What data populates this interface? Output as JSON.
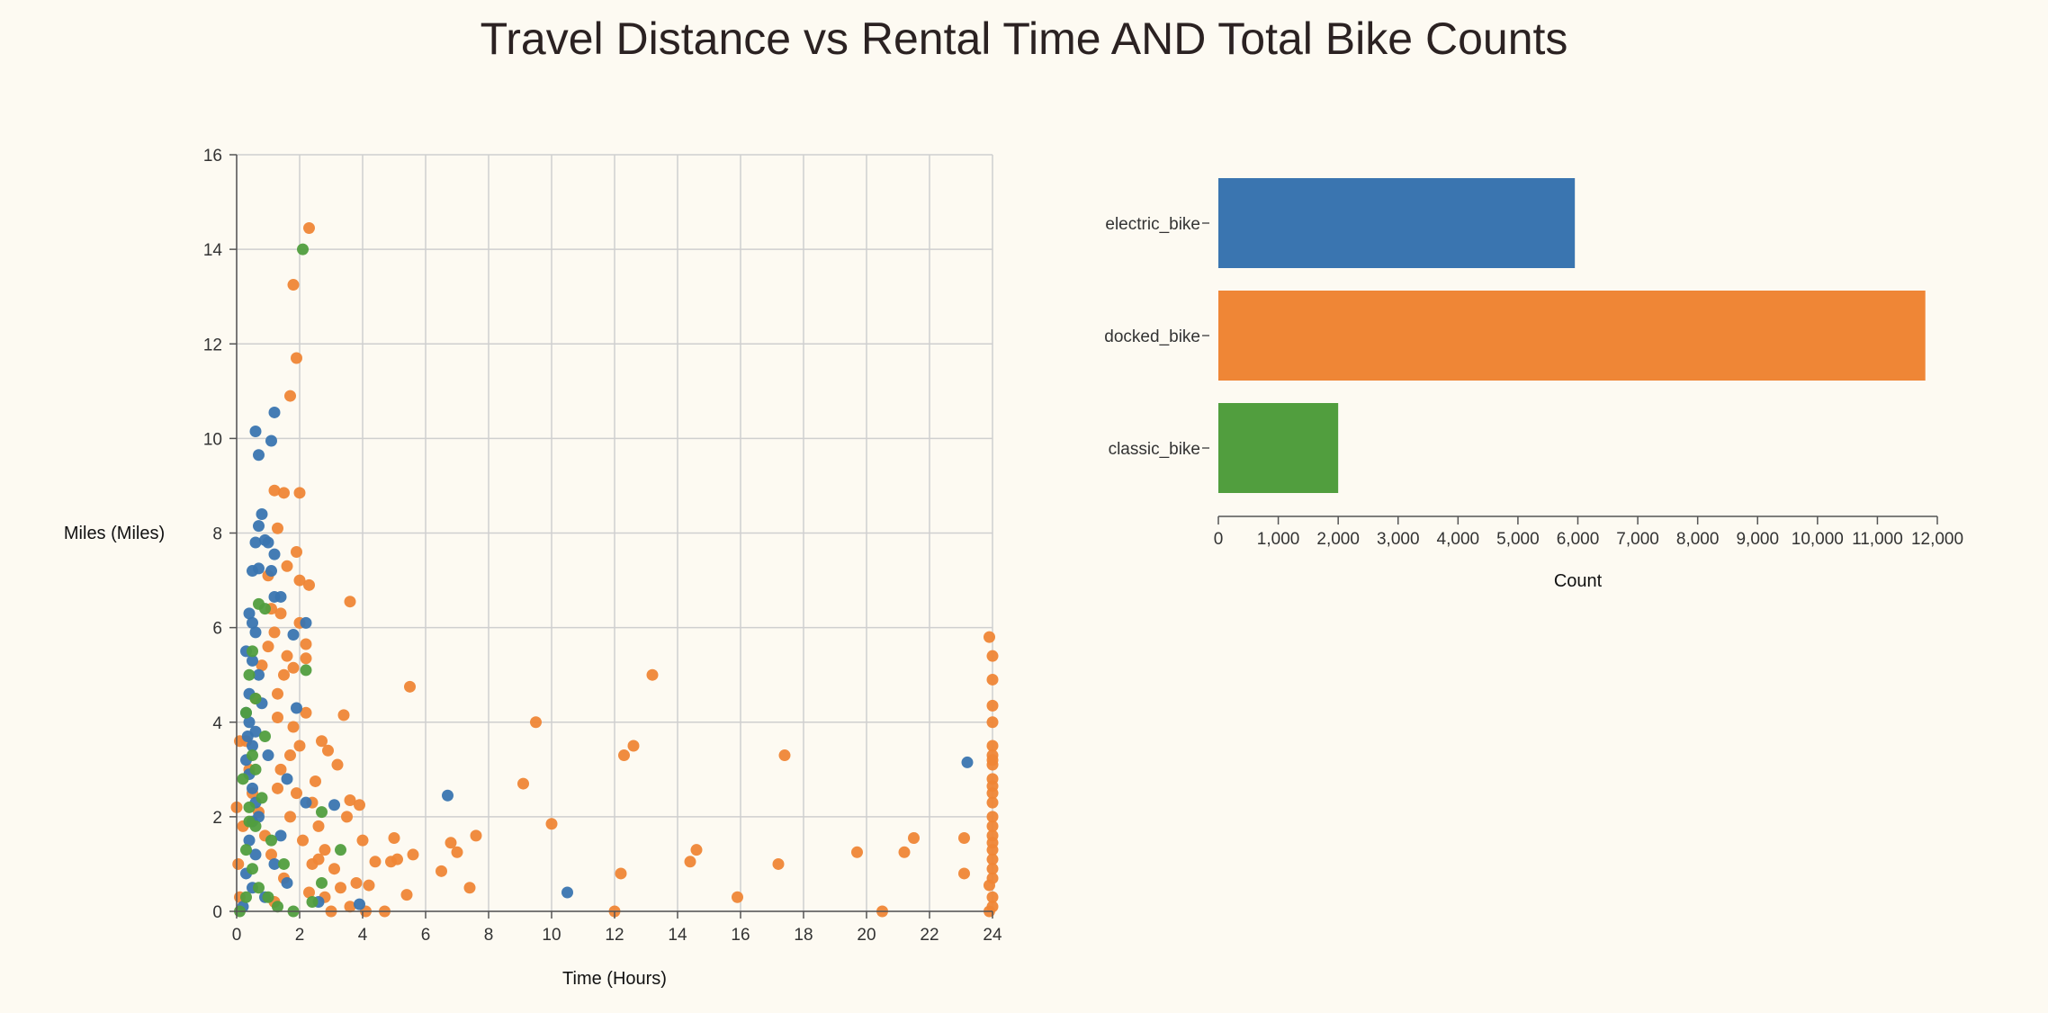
{
  "title": "Travel Distance vs Rental Time AND Total Bike Counts",
  "colors": {
    "electric_bike": "#3a75b0",
    "docked_bike": "#ef8636",
    "classic_bike": "#519e3e",
    "background": "#fdfaf2",
    "grid": "#cfcfcf",
    "axis": "#555555"
  },
  "chart_data": [
    {
      "type": "scatter",
      "xlabel": "Time (Hours)",
      "ylabel": "Miles (Miles)",
      "xlim": [
        0,
        24
      ],
      "ylim": [
        0,
        16
      ],
      "x_ticks": [
        0,
        2,
        4,
        6,
        8,
        10,
        12,
        14,
        16,
        18,
        20,
        22,
        24
      ],
      "y_ticks": [
        0,
        2,
        4,
        6,
        8,
        10,
        12,
        14,
        16
      ],
      "grid": true,
      "series": [
        {
          "name": "electric_bike",
          "points": [
            [
              0.6,
              10.15
            ],
            [
              0.7,
              9.65
            ],
            [
              1.2,
              10.55
            ],
            [
              1.1,
              9.95
            ],
            [
              0.8,
              8.4
            ],
            [
              0.7,
              8.15
            ],
            [
              0.9,
              7.85
            ],
            [
              1.0,
              7.8
            ],
            [
              0.6,
              7.8
            ],
            [
              1.2,
              7.55
            ],
            [
              0.5,
              7.2
            ],
            [
              0.7,
              7.25
            ],
            [
              1.1,
              7.2
            ],
            [
              1.4,
              6.65
            ],
            [
              1.2,
              6.65
            ],
            [
              2.2,
              6.1
            ],
            [
              0.4,
              6.3
            ],
            [
              0.5,
              6.1
            ],
            [
              0.6,
              5.9
            ],
            [
              1.8,
              5.85
            ],
            [
              0.3,
              5.5
            ],
            [
              0.5,
              5.3
            ],
            [
              0.7,
              5.0
            ],
            [
              0.4,
              4.6
            ],
            [
              0.3,
              4.2
            ],
            [
              0.4,
              4.0
            ],
            [
              0.6,
              3.8
            ],
            [
              0.5,
              3.5
            ],
            [
              0.3,
              3.2
            ],
            [
              0.4,
              2.9
            ],
            [
              0.5,
              2.6
            ],
            [
              0.6,
              2.3
            ],
            [
              1.6,
              2.8
            ],
            [
              2.2,
              2.3
            ],
            [
              3.1,
              2.25
            ],
            [
              6.7,
              2.45
            ],
            [
              23.2,
              3.15
            ],
            [
              0.5,
              1.9
            ],
            [
              0.4,
              1.5
            ],
            [
              0.6,
              1.2
            ],
            [
              1.4,
              1.6
            ],
            [
              0.3,
              0.8
            ],
            [
              0.5,
              0.5
            ],
            [
              0.9,
              0.3
            ],
            [
              1.6,
              0.6
            ],
            [
              2.6,
              0.2
            ],
            [
              3.9,
              0.15
            ],
            [
              10.5,
              0.4
            ],
            [
              0.2,
              0.1
            ],
            [
              1.9,
              4.3
            ],
            [
              0.8,
              4.4
            ],
            [
              1.0,
              3.3
            ],
            [
              0.7,
              2.0
            ],
            [
              1.2,
              1.0
            ],
            [
              0.35,
              3.7
            ]
          ]
        },
        {
          "name": "docked_bike",
          "points": [
            [
              2.3,
              14.45
            ],
            [
              1.8,
              13.25
            ],
            [
              1.9,
              11.7
            ],
            [
              1.7,
              10.9
            ],
            [
              1.2,
              8.9
            ],
            [
              1.5,
              8.85
            ],
            [
              2.0,
              8.85
            ],
            [
              1.3,
              8.1
            ],
            [
              1.9,
              7.6
            ],
            [
              1.6,
              7.3
            ],
            [
              2.0,
              7.0
            ],
            [
              1.0,
              7.1
            ],
            [
              2.3,
              6.9
            ],
            [
              3.6,
              6.55
            ],
            [
              1.4,
              6.3
            ],
            [
              2.0,
              6.1
            ],
            [
              1.2,
              5.9
            ],
            [
              2.2,
              5.65
            ],
            [
              1.6,
              5.4
            ],
            [
              2.2,
              5.35
            ],
            [
              1.8,
              5.15
            ],
            [
              5.5,
              4.75
            ],
            [
              13.2,
              5.0
            ],
            [
              9.5,
              4.0
            ],
            [
              3.4,
              4.15
            ],
            [
              2.2,
              4.2
            ],
            [
              1.3,
              4.1
            ],
            [
              1.8,
              3.9
            ],
            [
              2.7,
              3.6
            ],
            [
              2.0,
              3.5
            ],
            [
              2.9,
              3.4
            ],
            [
              3.2,
              3.1
            ],
            [
              12.3,
              3.3
            ],
            [
              12.6,
              3.5
            ],
            [
              17.4,
              3.3
            ],
            [
              9.1,
              2.7
            ],
            [
              2.5,
              2.75
            ],
            [
              1.3,
              2.6
            ],
            [
              2.4,
              2.3
            ],
            [
              3.6,
              2.35
            ],
            [
              3.9,
              2.25
            ],
            [
              3.5,
              2.0
            ],
            [
              2.6,
              1.8
            ],
            [
              10.0,
              1.85
            ],
            [
              4.0,
              1.5
            ],
            [
              5.0,
              1.55
            ],
            [
              7.6,
              1.6
            ],
            [
              6.8,
              1.45
            ],
            [
              7.0,
              1.25
            ],
            [
              5.6,
              1.2
            ],
            [
              4.4,
              1.05
            ],
            [
              4.9,
              1.05
            ],
            [
              5.1,
              1.1
            ],
            [
              6.5,
              0.85
            ],
            [
              3.8,
              0.6
            ],
            [
              4.2,
              0.55
            ],
            [
              5.4,
              0.35
            ],
            [
              7.4,
              0.5
            ],
            [
              12.2,
              0.8
            ],
            [
              14.4,
              1.05
            ],
            [
              14.6,
              1.3
            ],
            [
              15.9,
              0.3
            ],
            [
              17.2,
              1.0
            ],
            [
              19.7,
              1.25
            ],
            [
              21.2,
              1.25
            ],
            [
              21.5,
              1.55
            ],
            [
              23.1,
              1.55
            ],
            [
              23.1,
              0.8
            ],
            [
              20.5,
              0.0
            ],
            [
              12.0,
              0.0
            ],
            [
              4.7,
              0.0
            ],
            [
              4.1,
              0.0
            ],
            [
              3.0,
              0.0
            ],
            [
              2.3,
              0.4
            ],
            [
              1.5,
              0.7
            ],
            [
              1.1,
              1.2
            ],
            [
              0.9,
              1.6
            ],
            [
              0.7,
              2.1
            ],
            [
              0.5,
              2.5
            ],
            [
              0.4,
              3.0
            ],
            [
              0.3,
              3.6
            ],
            [
              0.6,
              4.5
            ],
            [
              0.8,
              5.2
            ],
            [
              1.0,
              5.6
            ],
            [
              1.1,
              6.4
            ],
            [
              0.1,
              0.3
            ],
            [
              0.05,
              1.0
            ],
            [
              0.2,
              1.8
            ],
            [
              0.0,
              2.2
            ],
            [
              0.1,
              3.6
            ],
            [
              23.9,
              5.8
            ],
            [
              24.0,
              5.4
            ],
            [
              24.0,
              4.9
            ],
            [
              24.0,
              4.35
            ],
            [
              24.0,
              4.0
            ],
            [
              24.0,
              3.5
            ],
            [
              24.0,
              3.3
            ],
            [
              24.0,
              3.1
            ],
            [
              24.0,
              2.8
            ],
            [
              24.0,
              2.5
            ],
            [
              24.0,
              2.3
            ],
            [
              24.0,
              2.0
            ],
            [
              24.0,
              1.8
            ],
            [
              24.0,
              1.6
            ],
            [
              24.0,
              1.3
            ],
            [
              24.0,
              1.1
            ],
            [
              24.0,
              0.9
            ],
            [
              24.0,
              0.7
            ],
            [
              23.9,
              0.55
            ],
            [
              24.0,
              0.3
            ],
            [
              24.0,
              0.1
            ],
            [
              23.9,
              0.0
            ],
            [
              24.0,
              1.45
            ],
            [
              24.0,
              2.65
            ],
            [
              24.0,
              3.2
            ],
            [
              2.8,
              1.3
            ],
            [
              3.1,
              0.9
            ],
            [
              2.6,
              1.1
            ],
            [
              2.1,
              1.5
            ],
            [
              1.7,
              2.0
            ],
            [
              1.4,
              3.0
            ],
            [
              1.9,
              2.5
            ],
            [
              2.4,
              1.0
            ],
            [
              1.3,
              4.6
            ],
            [
              1.7,
              3.3
            ],
            [
              1.5,
              5.0
            ],
            [
              2.8,
              0.3
            ],
            [
              3.3,
              0.5
            ],
            [
              3.6,
              0.1
            ],
            [
              1.2,
              0.2
            ]
          ]
        },
        {
          "name": "classic_bike",
          "points": [
            [
              2.1,
              14.0
            ],
            [
              2.2,
              5.1
            ],
            [
              0.9,
              6.4
            ],
            [
              0.7,
              6.5
            ],
            [
              0.5,
              5.5
            ],
            [
              0.4,
              5.0
            ],
            [
              0.6,
              4.5
            ],
            [
              0.3,
              4.2
            ],
            [
              0.5,
              3.3
            ],
            [
              0.2,
              2.8
            ],
            [
              0.4,
              2.2
            ],
            [
              0.6,
              1.8
            ],
            [
              0.3,
              1.3
            ],
            [
              0.5,
              0.9
            ],
            [
              0.7,
              0.5
            ],
            [
              1.0,
              0.3
            ],
            [
              1.3,
              0.1
            ],
            [
              2.7,
              2.1
            ],
            [
              3.3,
              1.3
            ],
            [
              2.7,
              0.6
            ],
            [
              1.5,
              1.0
            ],
            [
              1.1,
              1.5
            ],
            [
              0.8,
              2.4
            ],
            [
              0.1,
              0.0
            ],
            [
              0.3,
              0.3
            ],
            [
              1.8,
              0.0
            ],
            [
              2.4,
              0.2
            ],
            [
              0.9,
              3.7
            ],
            [
              0.4,
              1.9
            ],
            [
              0.6,
              3.0
            ]
          ]
        }
      ]
    },
    {
      "type": "bar",
      "orientation": "horizontal",
      "categories": [
        "electric_bike",
        "docked_bike",
        "classic_bike"
      ],
      "values": [
        5950,
        11800,
        2000
      ],
      "xlabel": "Count",
      "xlim": [
        0,
        12000
      ],
      "x_ticks": [
        "0",
        "1,000",
        "2,000",
        "3,000",
        "4,000",
        "5,000",
        "6,000",
        "7,000",
        "8,000",
        "9,000",
        "10,000",
        "11,000",
        "12,000"
      ],
      "grid": false
    }
  ]
}
